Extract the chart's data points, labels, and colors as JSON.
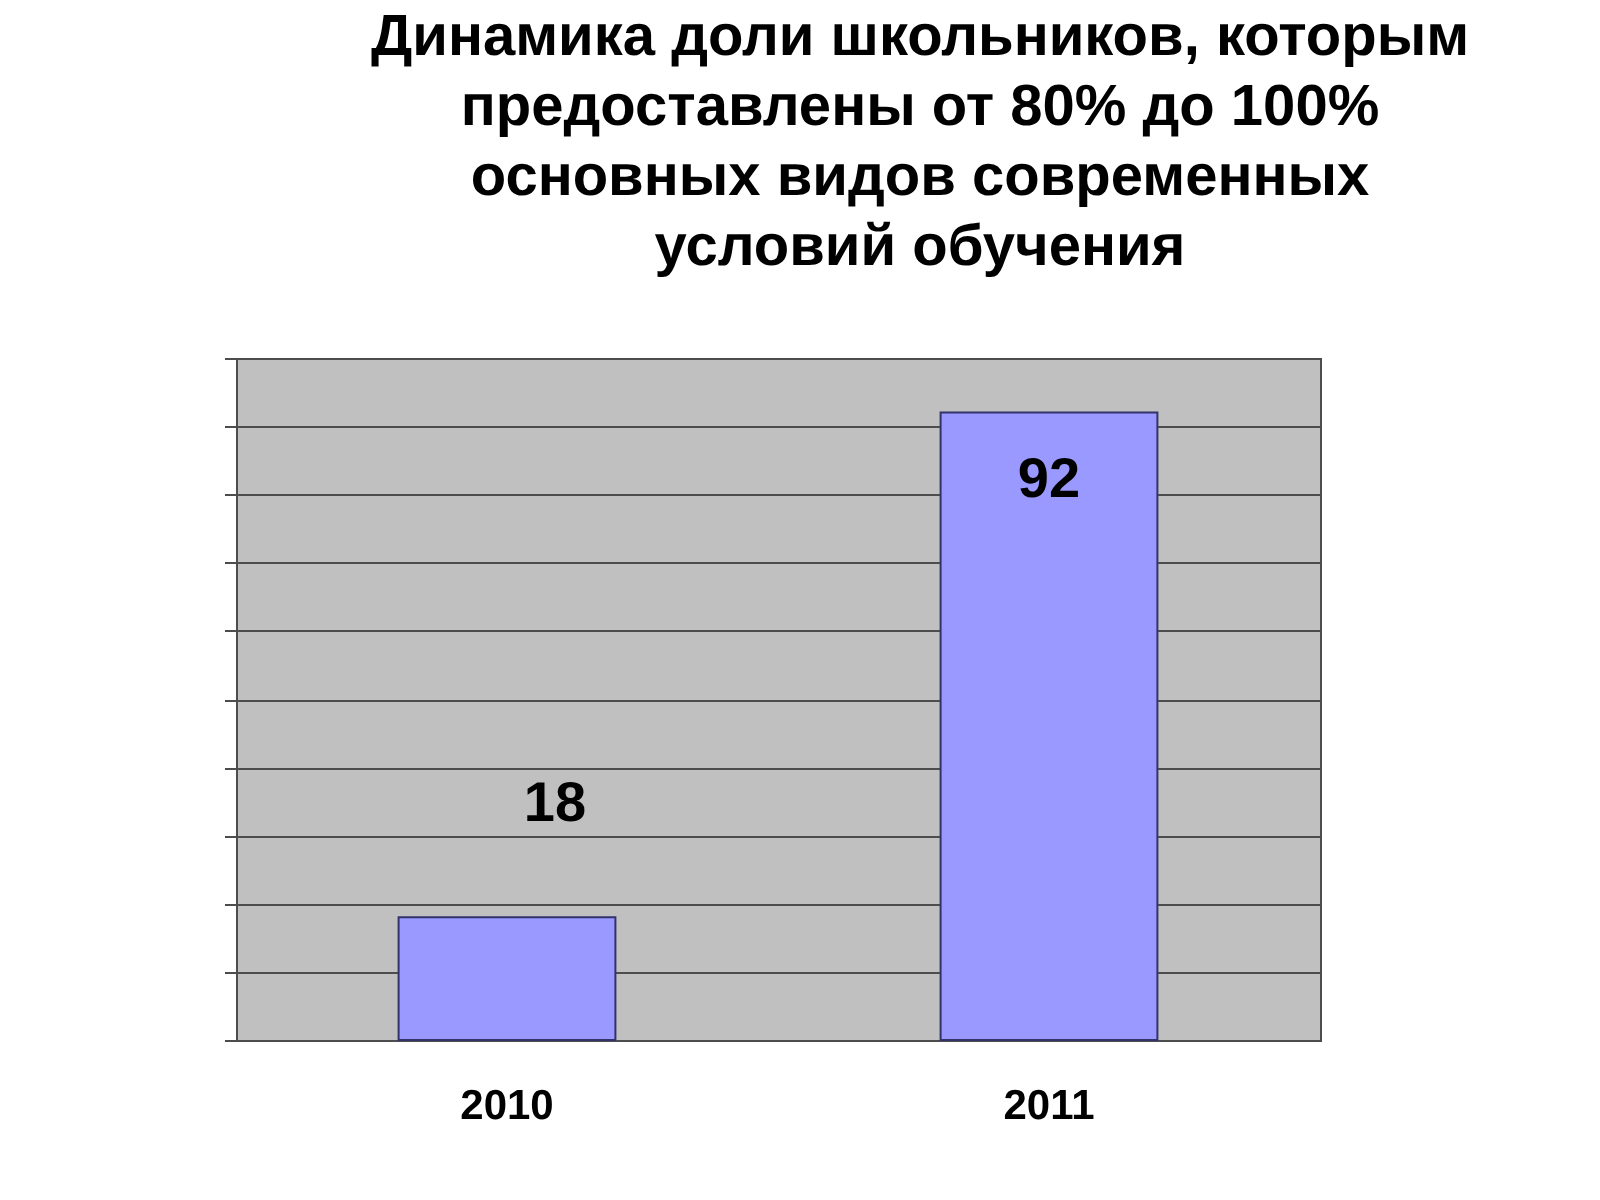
{
  "chart_data": {
    "type": "bar",
    "title": "Динамика доли школьников, которым предоставлены от 80% до 100% основных видов современных условий обучения",
    "categories": [
      "2010",
      "2011"
    ],
    "values": [
      18,
      92
    ],
    "color": "#9999ff",
    "ylim": [
      0,
      100
    ],
    "yticks": [
      {
        "value": 0,
        "label": null
      },
      {
        "value": 10,
        "label": null
      },
      {
        "value": 20,
        "label": null
      },
      {
        "value": 30,
        "label": null
      },
      {
        "value": 40,
        "label": null
      },
      {
        "value": 50,
        "label": null
      },
      {
        "value": 60,
        "label": null
      },
      {
        "value": 70,
        "label": null
      },
      {
        "value": 80,
        "label": null
      },
      {
        "value": 90,
        "label": null
      },
      {
        "value": 100,
        "label": null
      }
    ],
    "grid": "y",
    "tick_labels": "x",
    "data_labels": true
  }
}
